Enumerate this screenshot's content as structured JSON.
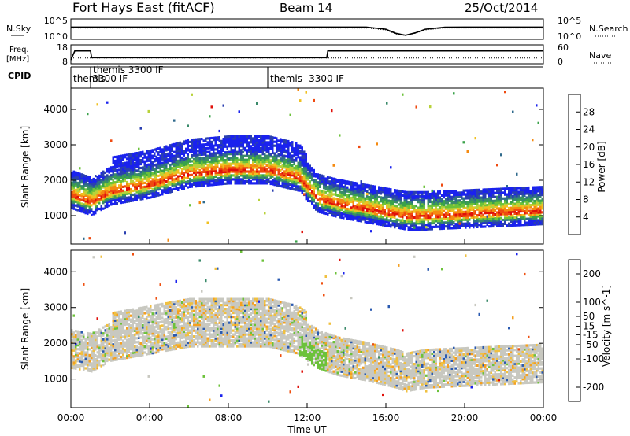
{
  "header": {
    "title": "Fort Hays East (fitACF)",
    "beam": "Beam 14",
    "date": "25/Oct/2014"
  },
  "noise_panel": {
    "left_label": "N.Sky",
    "right_label": "N.Search",
    "left_ticks": [
      "10^5",
      "10^0"
    ],
    "right_ticks": [
      "10^5",
      "10^0"
    ]
  },
  "freq_panel": {
    "left_label_1": "Freq.",
    "left_label_2": "[MHz]",
    "right_label": "Nave",
    "left_ticks": [
      "18",
      "8"
    ],
    "right_ticks": [
      "60",
      "0"
    ]
  },
  "cpid": {
    "label": "CPID",
    "segments": [
      {
        "start_hour": 0.0,
        "end_hour": 1.0,
        "line1": "themis",
        "line2": ""
      },
      {
        "start_hour": 1.0,
        "end_hour": 10.0,
        "line1": "themis 3300 IF",
        "line2": "-3300 IF"
      },
      {
        "start_hour": 10.0,
        "end_hour": 24.0,
        "line1": "themis -3300 IF",
        "line2": ""
      }
    ]
  },
  "x_axis": {
    "label": "Time UT",
    "ticks": [
      "00:00",
      "04:00",
      "08:00",
      "12:00",
      "16:00",
      "20:00",
      "00:00"
    ]
  },
  "chart_data": [
    {
      "type": "line",
      "name": "noise",
      "x": [
        0,
        1,
        2,
        3,
        4,
        5,
        6,
        7,
        8,
        9,
        10,
        11,
        12,
        13,
        14,
        15,
        16,
        16.5,
        17,
        17.5,
        18,
        19,
        20,
        21,
        22,
        23,
        24
      ],
      "series": [
        {
          "name": "N.Sky",
          "values": [
            1000,
            1000,
            1000,
            1000,
            1000,
            1000,
            1000,
            1000,
            1000,
            1000,
            1000,
            1000,
            1000,
            1000,
            1000,
            1000,
            300,
            30,
            10,
            40,
            300,
            900,
            1000,
            1000,
            1000,
            1000,
            1000
          ]
        },
        {
          "name": "N.Search",
          "values": [
            600,
            600,
            600,
            600,
            600,
            600,
            600,
            600,
            600,
            600,
            600,
            600,
            600,
            600,
            600,
            600,
            200,
            20,
            8,
            30,
            200,
            600,
            600,
            600,
            600,
            600,
            600
          ]
        }
      ]
    },
    {
      "type": "line",
      "name": "frequency",
      "x": [
        0,
        0.2,
        1.0,
        1.05,
        13.0,
        13.05,
        24
      ],
      "series": [
        {
          "name": "Freq.",
          "values": [
            10,
            14.8,
            14.8,
            11.2,
            11.2,
            14.8,
            14.8
          ]
        },
        {
          "name": "Nave",
          "values": [
            18,
            18,
            18,
            18,
            18,
            18,
            18
          ]
        }
      ]
    },
    {
      "type": "heatmap",
      "name": "power",
      "xlabel": "",
      "ylabel": "Slant Range [km]",
      "xlim": [
        0,
        24
      ],
      "ylim": [
        200,
        4600
      ],
      "yticks": [
        1000,
        2000,
        3000,
        4000
      ],
      "colorbar": {
        "label": "Power [dB]",
        "ticks": [
          4,
          8,
          12,
          16,
          20,
          24,
          28
        ],
        "range": [
          0,
          32
        ],
        "colors": [
          "#1a22ee",
          "#2a3fb0",
          "#2f6a8c",
          "#3a8a6a",
          "#3aa24a",
          "#6cc23a",
          "#b8d23a",
          "#f0c020",
          "#f58a10",
          "#ef4a10",
          "#e0100a"
        ]
      },
      "band_center_km": [
        [
          0,
          1600
        ],
        [
          1,
          1400
        ],
        [
          2,
          1700
        ],
        [
          4,
          1900
        ],
        [
          6,
          2200
        ],
        [
          8,
          2300
        ],
        [
          10,
          2300
        ],
        [
          11.5,
          2100
        ],
        [
          12.5,
          1500
        ],
        [
          13.5,
          1350
        ],
        [
          15,
          1200
        ],
        [
          16.5,
          1050
        ],
        [
          17,
          1000
        ],
        [
          18,
          1000
        ],
        [
          20,
          1050
        ],
        [
          22,
          1100
        ],
        [
          24,
          1150
        ]
      ]
    },
    {
      "type": "heatmap",
      "name": "velocity",
      "xlabel": "Time UT",
      "ylabel": "Slant Range [km]",
      "xlim": [
        0,
        24
      ],
      "ylim": [
        200,
        4600
      ],
      "yticks": [
        1000,
        2000,
        3000,
        4000
      ],
      "colorbar": {
        "label": "Velocity [m s^-1]",
        "ticks": [
          -200,
          -100,
          -50,
          -15,
          15,
          50,
          100,
          200
        ],
        "range": [
          -250,
          250
        ],
        "colors": [
          "#e0100a",
          "#ef5010",
          "#f5a020",
          "#f0c040",
          "#c8c8c0",
          "#6cc23a",
          "#3a8a6a",
          "#2a5ab0",
          "#1a22ee"
        ]
      },
      "band_center_km": [
        [
          0,
          1700
        ],
        [
          1,
          1600
        ],
        [
          2,
          1900
        ],
        [
          4,
          2100
        ],
        [
          6,
          2300
        ],
        [
          8,
          2300
        ],
        [
          10,
          2300
        ],
        [
          11.5,
          2100
        ],
        [
          12.5,
          1700
        ],
        [
          13.5,
          1500
        ],
        [
          15,
          1350
        ],
        [
          16.5,
          1150
        ],
        [
          17,
          1050
        ],
        [
          18,
          1150
        ],
        [
          20,
          1200
        ],
        [
          22,
          1250
        ],
        [
          24,
          1300
        ]
      ]
    }
  ]
}
